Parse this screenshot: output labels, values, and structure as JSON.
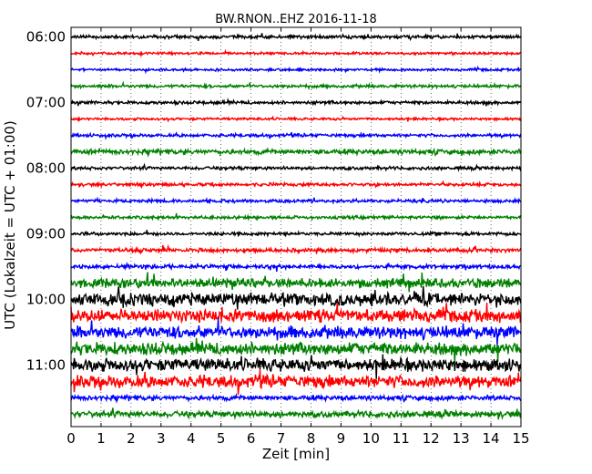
{
  "chart_data": {
    "type": "line",
    "title": "BW.RNON..EHZ 2016-11-18",
    "xlabel": "Zeit  [min]",
    "ylabel": "UTC (Lokalzeit = UTC + 01:00)",
    "xlim": [
      0,
      15
    ],
    "xticks": [
      "0",
      "1",
      "2",
      "3",
      "4",
      "5",
      "6",
      "7",
      "8",
      "9",
      "10",
      "11",
      "12",
      "13",
      "14",
      "15"
    ],
    "yticks": [
      {
        "label": "06:00",
        "row": 0
      },
      {
        "label": "07:00",
        "row": 4
      },
      {
        "label": "08:00",
        "row": 8
      },
      {
        "label": "09:00",
        "row": 12
      },
      {
        "label": "10:00",
        "row": 16
      },
      {
        "label": "11:00",
        "row": 20
      }
    ],
    "grid": "vertical dotted at each minute",
    "row_colors": [
      "#000000",
      "#ff0000",
      "#0000ff",
      "#008000"
    ],
    "rows": [
      {
        "start": "06:00",
        "amp": 2
      },
      {
        "start": "06:15",
        "amp": 1.5
      },
      {
        "start": "06:30",
        "amp": 1.5
      },
      {
        "start": "06:45",
        "amp": 2
      },
      {
        "start": "07:00",
        "amp": 2
      },
      {
        "start": "07:15",
        "amp": 1.5
      },
      {
        "start": "07:30",
        "amp": 2
      },
      {
        "start": "07:45",
        "amp": 3
      },
      {
        "start": "08:00",
        "amp": 2
      },
      {
        "start": "08:15",
        "amp": 2
      },
      {
        "start": "08:30",
        "amp": 2
      },
      {
        "start": "08:45",
        "amp": 2
      },
      {
        "start": "09:00",
        "amp": 2
      },
      {
        "start": "09:15",
        "amp": 2.5
      },
      {
        "start": "09:30",
        "amp": 2.5
      },
      {
        "start": "09:45",
        "amp": 6
      },
      {
        "start": "10:00",
        "amp": 8
      },
      {
        "start": "10:15",
        "amp": 8
      },
      {
        "start": "10:30",
        "amp": 8
      },
      {
        "start": "10:45",
        "amp": 8
      },
      {
        "start": "11:00",
        "amp": 8
      },
      {
        "start": "11:15",
        "amp": 8
      },
      {
        "start": "11:30",
        "amp": 3
      },
      {
        "start": "11:45",
        "amp": 4
      }
    ]
  }
}
